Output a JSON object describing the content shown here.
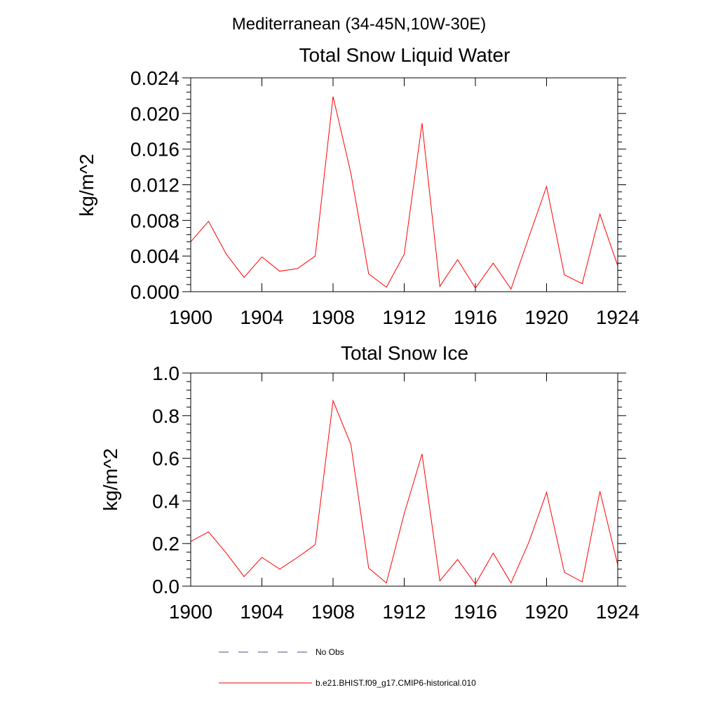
{
  "page_title": "Mediterranean (34-45N,10W-30E)",
  "legend": [
    {
      "label": "No Obs",
      "color": "#4b4b82",
      "dash": "dashed"
    },
    {
      "label": "b.e21.BHIST.f09_g17.CMIP6-historical.010",
      "color": "#ff0000",
      "dash": "solid"
    }
  ],
  "chart_data": [
    {
      "type": "line",
      "title": "Total Snow Liquid Water",
      "xlabel": "",
      "ylabel": "kg/m^2",
      "xlim": [
        1900,
        1924
      ],
      "ylim": [
        0,
        0.024
      ],
      "xticks": [
        1900,
        1904,
        1908,
        1912,
        1916,
        1920,
        1924
      ],
      "xtick_labels": [
        "1900",
        "1904",
        "1908",
        "1912",
        "1916",
        "1920",
        "1924"
      ],
      "yticks": [
        0,
        0.004,
        0.008,
        0.012,
        0.016,
        0.02,
        0.024
      ],
      "ytick_labels": [
        "0.000",
        "0.004",
        "0.008",
        "0.012",
        "0.016",
        "0.020",
        "0.024"
      ],
      "grid": false,
      "series": [
        {
          "name": "b.e21.BHIST.f09_g17.CMIP6-historical.010",
          "color": "#ff0000",
          "x": [
            1900,
            1901,
            1902,
            1903,
            1904,
            1905,
            1906,
            1907,
            1908,
            1909,
            1910,
            1911,
            1912,
            1913,
            1914,
            1915,
            1916,
            1917,
            1918,
            1919,
            1920,
            1921,
            1922,
            1923,
            1924
          ],
          "y": [
            0.0056,
            0.0079,
            0.0042,
            0.0016,
            0.0039,
            0.0023,
            0.0026,
            0.004,
            0.0219,
            0.0133,
            0.002,
            0.0005,
            0.0042,
            0.0189,
            0.0006,
            0.0036,
            0.0004,
            0.0032,
            0.0003,
            0.0061,
            0.0118,
            0.0019,
            0.0009,
            0.0087,
            0.0029
          ]
        }
      ]
    },
    {
      "type": "line",
      "title": "Total Snow Ice",
      "xlabel": "",
      "ylabel": "kg/m^2",
      "xlim": [
        1900,
        1924
      ],
      "ylim": [
        0,
        1.0
      ],
      "xticks": [
        1900,
        1904,
        1908,
        1912,
        1916,
        1920,
        1924
      ],
      "xtick_labels": [
        "1900",
        "1904",
        "1908",
        "1912",
        "1916",
        "1920",
        "1924"
      ],
      "yticks": [
        0,
        0.2,
        0.4,
        0.6,
        0.8,
        1.0
      ],
      "ytick_labels": [
        "0.0",
        "0.2",
        "0.4",
        "0.6",
        "0.8",
        "1.0"
      ],
      "grid": false,
      "series": [
        {
          "name": "b.e21.BHIST.f09_g17.CMIP6-historical.010",
          "color": "#ff0000",
          "x": [
            1900,
            1901,
            1902,
            1903,
            1904,
            1905,
            1906,
            1907,
            1908,
            1909,
            1910,
            1911,
            1912,
            1913,
            1914,
            1915,
            1916,
            1917,
            1918,
            1919,
            1920,
            1921,
            1922,
            1923,
            1924
          ],
          "y": [
            0.21,
            0.255,
            0.155,
            0.045,
            0.135,
            0.08,
            0.135,
            0.195,
            0.87,
            0.665,
            0.085,
            0.015,
            0.34,
            0.62,
            0.025,
            0.125,
            0.01,
            0.155,
            0.015,
            0.205,
            0.44,
            0.065,
            0.02,
            0.445,
            0.1
          ]
        }
      ]
    }
  ]
}
